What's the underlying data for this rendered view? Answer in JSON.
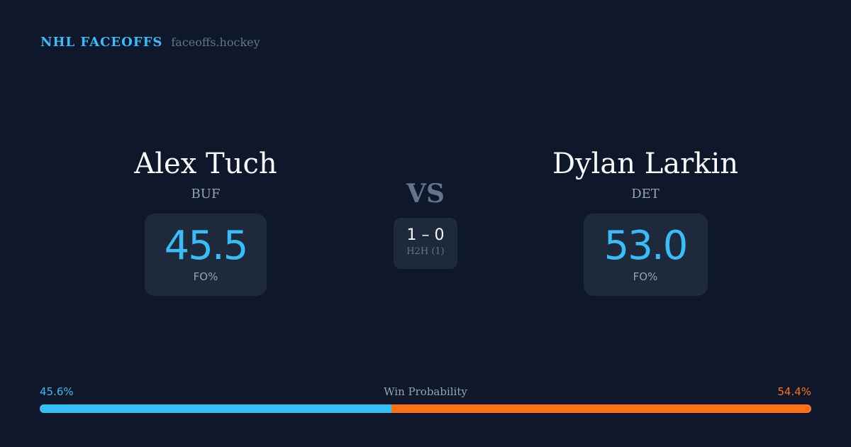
{
  "brand": {
    "name": "NHL FACEOFFS",
    "site": "faceoffs.hockey"
  },
  "players": [
    {
      "name": "Alex Tuch",
      "team": "BUF",
      "fo_pct": "45.5",
      "fo_label": "FO%"
    },
    {
      "name": "Dylan Larkin",
      "team": "DET",
      "fo_pct": "53.0",
      "fo_label": "FO%"
    }
  ],
  "vs": "VS",
  "h2h": {
    "score": "1 – 0",
    "label": "H2H (1)"
  },
  "win_probability": {
    "title": "Win Probability",
    "left": "45.6%",
    "right": "54.4%",
    "left_value": 45.6,
    "right_value": 54.4,
    "left_color": "#38bdf8",
    "right_color": "#f97316"
  }
}
